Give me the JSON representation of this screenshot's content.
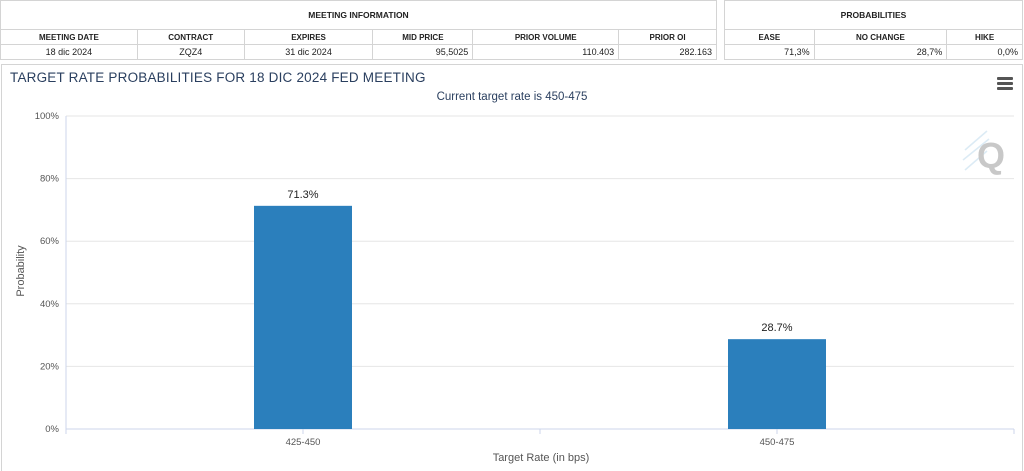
{
  "meeting_info": {
    "group_label": "MEETING INFORMATION",
    "headers": [
      "MEETING DATE",
      "CONTRACT",
      "EXPIRES",
      "MID PRICE",
      "PRIOR VOLUME",
      "PRIOR OI"
    ],
    "values": [
      "18 dic 2024",
      "ZQZ4",
      "31 dic 2024",
      "95,5025",
      "110.403",
      "282.163"
    ]
  },
  "probabilities": {
    "group_label": "PROBABILITIES",
    "headers": [
      "EASE",
      "NO CHANGE",
      "HIKE"
    ],
    "values": [
      "71,3%",
      "28,7%",
      "0,0%"
    ]
  },
  "chart": {
    "menu_icon": "hamburger-menu-icon",
    "watermark_icon": "q-logo-icon",
    "colors": {
      "bar": "#2b7fbc",
      "grid": "#e6e6e6",
      "title": "#2a3f5f"
    }
  },
  "chart_data": {
    "type": "bar",
    "title": "TARGET RATE PROBABILITIES FOR 18 DIC 2024 FED MEETING",
    "subtitle": "Current target rate is 450-475",
    "xlabel": "Target Rate (in bps)",
    "ylabel": "Probability",
    "categories": [
      "425-450",
      "450-475"
    ],
    "values": [
      71.3,
      28.7
    ],
    "data_labels": [
      "71.3%",
      "28.7%"
    ],
    "ylim": [
      0,
      100
    ],
    "yticks": [
      0,
      20,
      40,
      60,
      80,
      100
    ],
    "ytick_labels": [
      "0%",
      "20%",
      "40%",
      "60%",
      "80%",
      "100%"
    ],
    "grid": true,
    "legend": "none"
  }
}
